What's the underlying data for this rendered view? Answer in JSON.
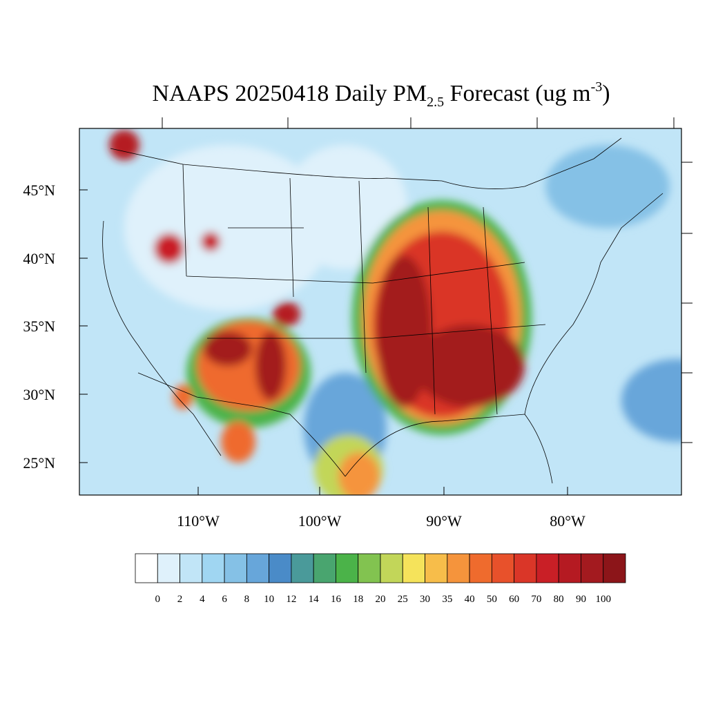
{
  "title": {
    "main": "NAAPS 20250418 Daily PM",
    "subscript": "2.5",
    "middle": " Forecast (ug m",
    "superscript": "-3",
    "end": ")"
  },
  "lat_labels": [
    "45°N",
    "40°N",
    "35°N",
    "30°N",
    "25°N"
  ],
  "lon_labels": [
    "110°W",
    "100°W",
    "90°W",
    "80°W"
  ],
  "colorbar": {
    "levels": [
      0,
      2,
      4,
      6,
      8,
      10,
      12,
      14,
      16,
      18,
      20,
      25,
      30,
      35,
      40,
      50,
      60,
      70,
      80,
      90,
      100
    ],
    "colors": [
      "#ffffff",
      "#dff1fb",
      "#c1e5f7",
      "#a0d6f2",
      "#85c1e6",
      "#67a6da",
      "#4a8bc8",
      "#4a9a9a",
      "#49a56f",
      "#4bb349",
      "#82c350",
      "#c2d659",
      "#f5e35b",
      "#f7bd4a",
      "#f5943c",
      "#ef6b2d",
      "#e8512b",
      "#da3628",
      "#c91f26",
      "#b51a22",
      "#a31a1f",
      "#8c1519"
    ]
  }
}
